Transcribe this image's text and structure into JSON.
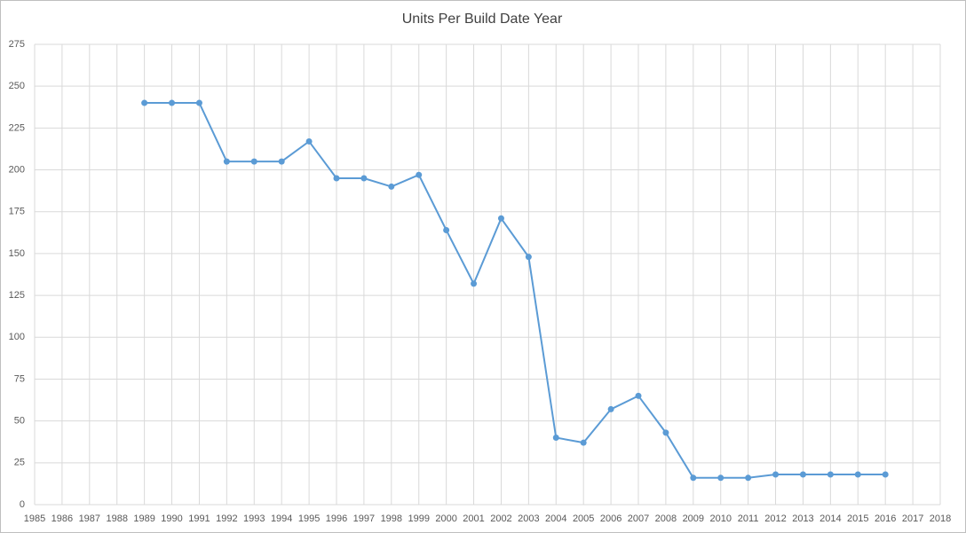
{
  "chart_data": {
    "type": "line",
    "title": "Units Per Build Date Year",
    "x": [
      1989,
      1990,
      1991,
      1992,
      1993,
      1994,
      1995,
      1996,
      1997,
      1998,
      1999,
      2000,
      2001,
      2002,
      2003,
      2004,
      2005,
      2006,
      2007,
      2008,
      2009,
      2010,
      2011,
      2012,
      2013,
      2014,
      2015,
      2016
    ],
    "series": [
      {
        "name": "Units",
        "color": "#5b9bd5",
        "values": [
          240,
          240,
          240,
          205,
          205,
          205,
          217,
          195,
          195,
          190,
          197,
          164,
          132,
          171,
          148,
          40,
          37,
          57,
          65,
          43,
          16,
          16,
          16,
          18,
          18,
          18,
          18,
          18
        ]
      }
    ],
    "xlim": [
      1985,
      2018
    ],
    "xticks": [
      1985,
      1986,
      1987,
      1988,
      1989,
      1990,
      1991,
      1992,
      1993,
      1994,
      1995,
      1996,
      1997,
      1998,
      1999,
      2000,
      2001,
      2002,
      2003,
      2004,
      2005,
      2006,
      2007,
      2008,
      2009,
      2010,
      2011,
      2012,
      2013,
      2014,
      2015,
      2016,
      2017,
      2018
    ],
    "ylim": [
      0,
      275
    ],
    "yticks": [
      0,
      25,
      50,
      75,
      100,
      125,
      150,
      175,
      200,
      225,
      250,
      275
    ],
    "grid": true
  }
}
